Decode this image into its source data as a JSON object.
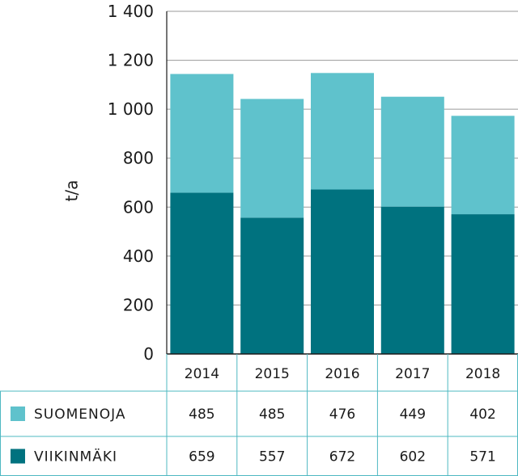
{
  "chart_data": {
    "type": "bar",
    "stacked": true,
    "categories": [
      "2014",
      "2015",
      "2016",
      "2017",
      "2018"
    ],
    "series": [
      {
        "name": "VIIKINMÄKI",
        "values": [
          659,
          557,
          672,
          602,
          571
        ],
        "color": "#00727f"
      },
      {
        "name": "SUOMENOJA",
        "values": [
          485,
          485,
          476,
          449,
          402
        ],
        "color": "#5fc2cc"
      }
    ],
    "ylabel": "t/a",
    "ylim": [
      0,
      1400
    ],
    "yticks": [
      0,
      200,
      400,
      600,
      800,
      1000,
      1200,
      1400
    ],
    "ytick_labels": [
      "0",
      "200",
      "400",
      "600",
      "800",
      "1 000",
      "1 200",
      "1 400"
    ],
    "grid": true,
    "legend": "data-table-below"
  }
}
